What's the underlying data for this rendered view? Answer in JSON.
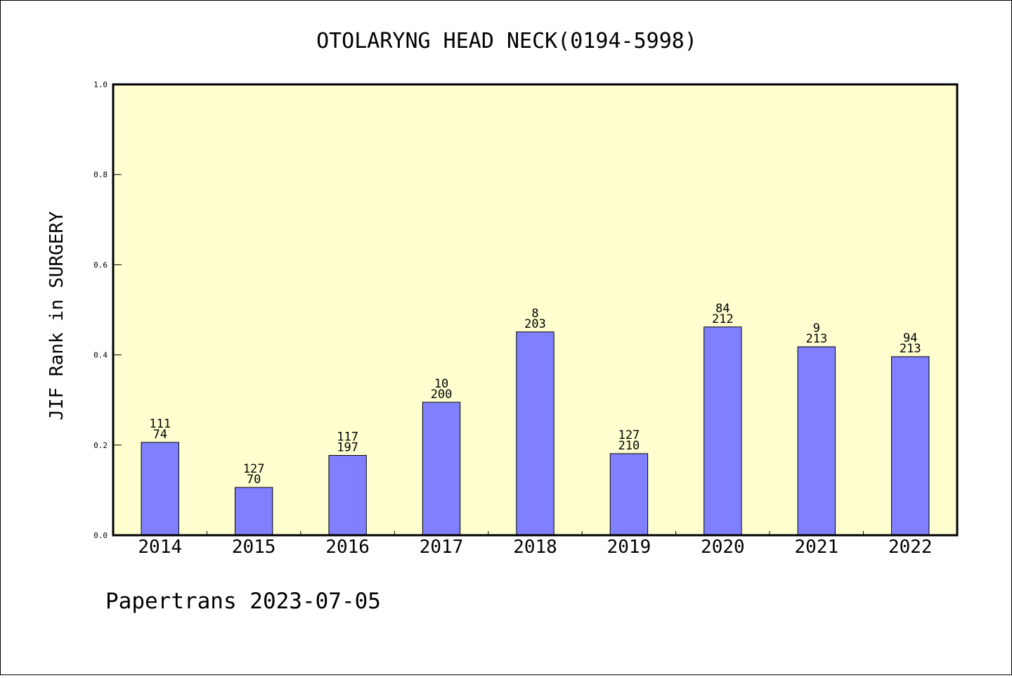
{
  "chart_data": {
    "type": "bar",
    "title": "OTOLARYNG HEAD NECK(0194-5998)",
    "xlabel": "",
    "ylabel": "JIF Rank in SURGERY",
    "ylim": [
      0,
      1.0
    ],
    "yticks": [
      "0.0",
      "0.2",
      "0.4",
      "0.6",
      "0.8",
      "1.0"
    ],
    "grid": false,
    "legend": "none",
    "categories": [
      "2014",
      "2015",
      "2016",
      "2017",
      "2018",
      "2019",
      "2020",
      "2021",
      "2022"
    ],
    "values": [
      0.206,
      0.106,
      0.177,
      0.295,
      0.451,
      0.181,
      0.462,
      0.418,
      0.396
    ],
    "rank_labels": [
      "111",
      "127",
      "117",
      "10",
      "8",
      "127",
      "84",
      "9",
      "94"
    ],
    "total_labels": [
      "74",
      "70",
      "197",
      "200",
      "203",
      "210",
      "212",
      "213",
      "213"
    ],
    "colors": {
      "bar": "#8080ff",
      "plot_background": "#ffffd0",
      "axis": "#000000"
    }
  },
  "footer": {
    "text": "Papertrans 2023-07-05"
  }
}
